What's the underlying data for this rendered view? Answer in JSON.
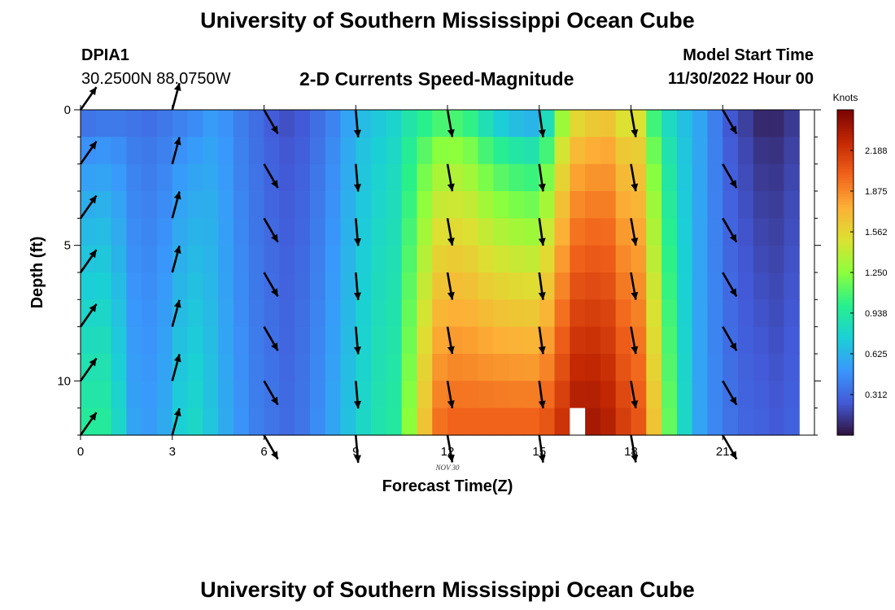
{
  "header": {
    "title": "University of Southern Mississippi Ocean Cube",
    "station_id": "DPIA1",
    "station_coords": "30.2500N  88.0750W",
    "plot_title": "2-D Currents Speed-Magnitude",
    "model_start_label": "Model Start Time",
    "model_start_value": "11/30/2022 Hour 00"
  },
  "footer": {
    "title": "University of Southern Mississippi Ocean Cube"
  },
  "chart_data": {
    "type": "heatmap",
    "title": "2-D Currents Speed-Magnitude",
    "xlabel": "Forecast Time(Z)",
    "ylabel": "Depth (ft)",
    "date_label": "NOV 30",
    "xlim": [
      0,
      24
    ],
    "ylim": [
      0,
      12
    ],
    "y_inverted": true,
    "xticks": [
      0,
      3,
      6,
      9,
      12,
      15,
      18,
      21
    ],
    "yticks": [
      0,
      5,
      10
    ],
    "colorbar": {
      "label": "Knots",
      "min": 0,
      "max": 2.5,
      "ticks": [
        "2.188",
        "1.875",
        "1.562",
        "1.250",
        "0.938",
        "0.625",
        "0.312"
      ],
      "colormap": "turbo"
    },
    "time_hours": [
      0,
      0.5,
      1,
      1.5,
      2,
      2.5,
      3,
      3.5,
      4,
      4.5,
      5,
      5.5,
      6,
      6.5,
      7,
      7.5,
      8,
      8.5,
      9,
      9.5,
      10,
      10.5,
      11,
      11.5,
      12,
      12.5,
      13,
      13.5,
      14,
      14.5,
      15,
      15.5,
      16,
      16.5,
      17,
      17.5,
      18,
      18.5,
      19,
      19.5,
      20,
      20.5,
      21,
      21.5,
      22,
      22.5,
      23
    ],
    "depth_ft": [
      0.5,
      1.5,
      2.5,
      3.5,
      4.5,
      5.5,
      6.5,
      7.5,
      8.5,
      9.5,
      10.5,
      11.5
    ],
    "surface_speed_knots": [
      0.36,
      0.38,
      0.38,
      0.36,
      0.34,
      0.37,
      0.41,
      0.45,
      0.52,
      0.48,
      0.39,
      0.33,
      0.26,
      0.22,
      0.25,
      0.33,
      0.42,
      0.55,
      0.66,
      0.72,
      0.78,
      0.9,
      1.0,
      1.08,
      1.08,
      1.02,
      0.86,
      0.74,
      0.67,
      0.63,
      0.84,
      1.3,
      1.55,
      1.62,
      1.65,
      1.5,
      1.5,
      1.06,
      0.82,
      0.68,
      0.56,
      0.4,
      0.24,
      0.16,
      0.08,
      0.08,
      0.14
    ],
    "bottom_speed_knots": [
      0.95,
      0.95,
      0.8,
      0.55,
      0.52,
      0.58,
      0.75,
      0.8,
      0.7,
      0.58,
      0.48,
      0.4,
      0.36,
      0.32,
      0.36,
      0.45,
      0.56,
      0.68,
      0.8,
      0.89,
      0.93,
      1.25,
      1.65,
      1.95,
      2.0,
      2.0,
      2.0,
      2.0,
      2.0,
      2.0,
      2.05,
      2.2,
      2.35,
      2.35,
      2.3,
      2.15,
      2.05,
      1.65,
      1.15,
      0.8,
      0.55,
      0.43,
      0.35,
      0.3,
      0.28,
      0.25,
      0.28
    ],
    "missing_cells": [
      {
        "time": 16,
        "depth": 11.5
      }
    ],
    "vectors": {
      "times": [
        0,
        3,
        6,
        9,
        12,
        15,
        18,
        21
      ],
      "depths": [
        0,
        2,
        4,
        6,
        8,
        10,
        12
      ],
      "direction_deg": [
        35,
        15,
        150,
        175,
        170,
        172,
        170,
        150
      ],
      "direction_note": "degrees clockwise from up"
    }
  }
}
